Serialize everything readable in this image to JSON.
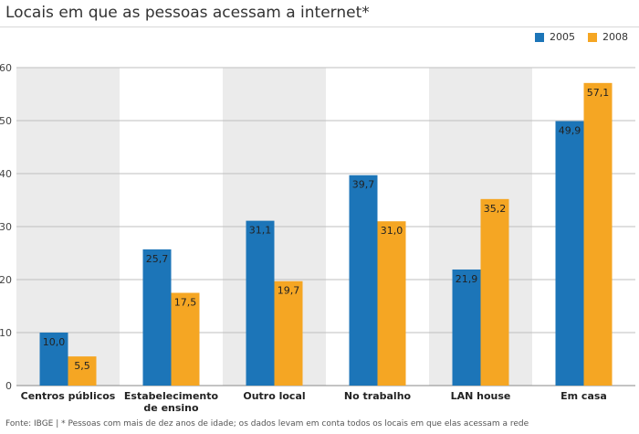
{
  "title": "Locais em que as pessoas acessam a internet*",
  "footer": "Fonte: IBGE | * Pessoas com mais de dez anos de idade; os dados levam em conta todos os locais em que elas acessam a rede",
  "colors": {
    "series_2005": "#1c75b8",
    "series_2008": "#f5a623",
    "band": "#ebebeb",
    "grid": "#bfbfbf"
  },
  "chart_data": {
    "type": "bar",
    "title": "Locais em que as pessoas acessam a internet*",
    "xlabel": "",
    "ylabel": "",
    "ylim": [
      0,
      60
    ],
    "yticks": [
      "0",
      "10",
      "20",
      "30",
      "40",
      "50",
      "60"
    ],
    "grid": true,
    "legend": "top-right",
    "categories": [
      "Centros públicos",
      "Estabelecimento\nde ensino",
      "Outro local",
      "No trabalho",
      "LAN house",
      "Em casa"
    ],
    "series": [
      {
        "name": "2005",
        "values": [
          10.0,
          25.7,
          31.1,
          39.7,
          21.9,
          49.9
        ],
        "labels": [
          "10,0",
          "25,7",
          "31,1",
          "39,7",
          "21,9",
          "49,9"
        ]
      },
      {
        "name": "2008",
        "values": [
          5.5,
          17.5,
          19.7,
          31.0,
          35.2,
          57.1
        ],
        "labels": [
          "5,5",
          "17,5",
          "19,7",
          "31,0",
          "35,2",
          "57,1"
        ]
      }
    ]
  }
}
